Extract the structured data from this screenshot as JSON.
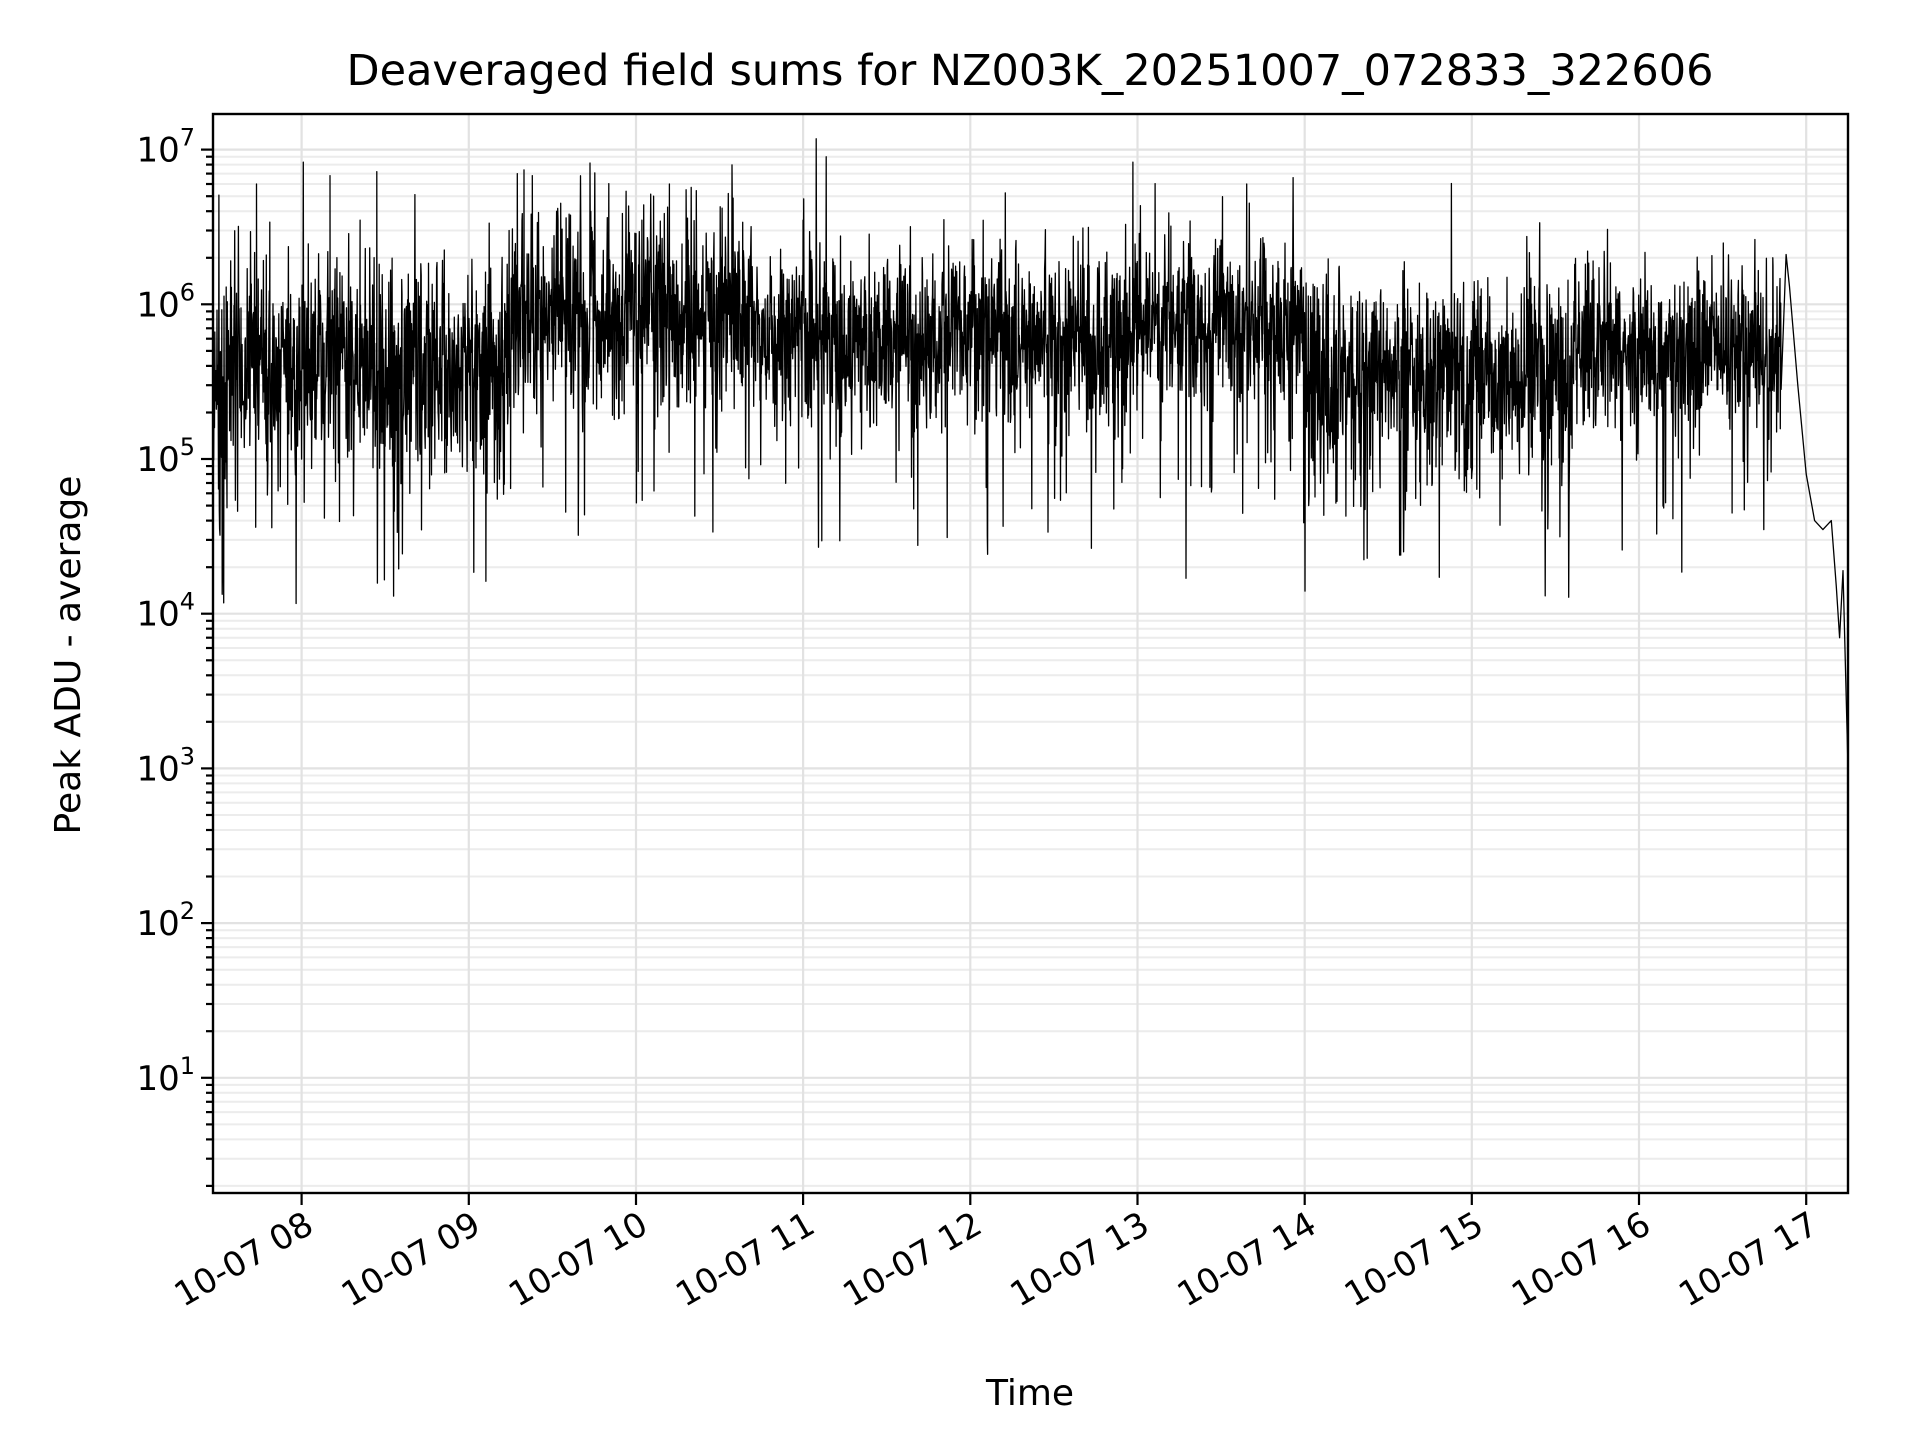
{
  "chart_data": {
    "type": "line",
    "title": "Deaveraged field sums for NZ003K_20251007_072833_322606",
    "xlabel": "Time",
    "ylabel": "Peak ADU - average",
    "yscale": "log",
    "ylim": [
      1.8,
      17000000
    ],
    "xlim_hours": [
      7.47,
      17.25
    ],
    "grid": true,
    "legend": "none",
    "colors": {
      "line": "#000000",
      "grid": "#e2e2e2",
      "frame": "#000000"
    },
    "x_ticks": [
      {
        "value": 8,
        "label": "10-07 08"
      },
      {
        "value": 9,
        "label": "10-07 09"
      },
      {
        "value": 10,
        "label": "10-07 10"
      },
      {
        "value": 11,
        "label": "10-07 11"
      },
      {
        "value": 12,
        "label": "10-07 12"
      },
      {
        "value": 13,
        "label": "10-07 13"
      },
      {
        "value": 14,
        "label": "10-07 14"
      },
      {
        "value": 15,
        "label": "10-07 15"
      },
      {
        "value": 16,
        "label": "10-07 16"
      },
      {
        "value": 17,
        "label": "10-07 17"
      }
    ],
    "y_ticks": [
      {
        "value": 10,
        "base": "10",
        "exp": "1"
      },
      {
        "value": 100,
        "base": "10",
        "exp": "2"
      },
      {
        "value": 1000,
        "base": "10",
        "exp": "3"
      },
      {
        "value": 10000,
        "base": "10",
        "exp": "4"
      },
      {
        "value": 100000,
        "base": "10",
        "exp": "5"
      },
      {
        "value": 1000000,
        "base": "10",
        "exp": "6"
      },
      {
        "value": 10000000,
        "base": "10",
        "exp": "7"
      }
    ],
    "series": [
      {
        "name": "Peak ADU - average",
        "description": "approximate trace; per-segment baseline level and spread estimated from the plot",
        "segments": [
          {
            "t0": 7.47,
            "t1": 9.25,
            "median": 380000,
            "spread_decades": 0.85,
            "spikes": [
              [
                7.73,
                6000000
              ],
              [
                7.81,
                3400000
              ],
              [
                8.01,
                8300000
              ],
              [
                8.17,
                6800000
              ],
              [
                8.35,
                3500000
              ],
              [
                8.45,
                7200000
              ]
            ]
          },
          {
            "t0": 9.25,
            "t1": 10.7,
            "median": 900000,
            "spread_decades": 0.8,
            "spikes": [
              [
                9.29,
                7000000
              ],
              [
                9.33,
                7400000
              ],
              [
                9.38,
                6800000
              ],
              [
                9.55,
                4500000
              ],
              [
                10.2,
                6000000
              ],
              [
                10.3,
                5500000
              ]
            ]
          },
          {
            "t0": 10.7,
            "t1": 13.0,
            "median": 600000,
            "spread_decades": 0.75,
            "spikes": [
              [
                11.0,
                3500000
              ],
              [
                13.2,
                3200000
              ]
            ]
          },
          {
            "t0": 13.0,
            "t1": 14.0,
            "median": 750000,
            "spread_decades": 0.65,
            "spikes": [
              [
                13.5,
                2600000
              ],
              [
                13.75,
                2700000
              ]
            ]
          },
          {
            "t0": 14.0,
            "t1": 15.6,
            "median": 350000,
            "spread_decades": 0.8,
            "spikes": []
          },
          {
            "t0": 15.6,
            "t1": 16.85,
            "median": 500000,
            "spread_decades": 0.65,
            "spikes": [
              [
                16.8,
                2000000
              ],
              [
                16.88,
                2100000
              ]
            ]
          }
        ],
        "tail": [
          [
            16.9,
            1300000
          ],
          [
            16.95,
            300000
          ],
          [
            17.0,
            80000
          ],
          [
            17.05,
            40000
          ],
          [
            17.1,
            35000
          ],
          [
            17.15,
            40000
          ],
          [
            17.18,
            15000
          ],
          [
            17.2,
            7000
          ],
          [
            17.22,
            19000
          ],
          [
            17.25,
            1000
          ],
          [
            17.25,
            3.8
          ]
        ]
      }
    ]
  }
}
